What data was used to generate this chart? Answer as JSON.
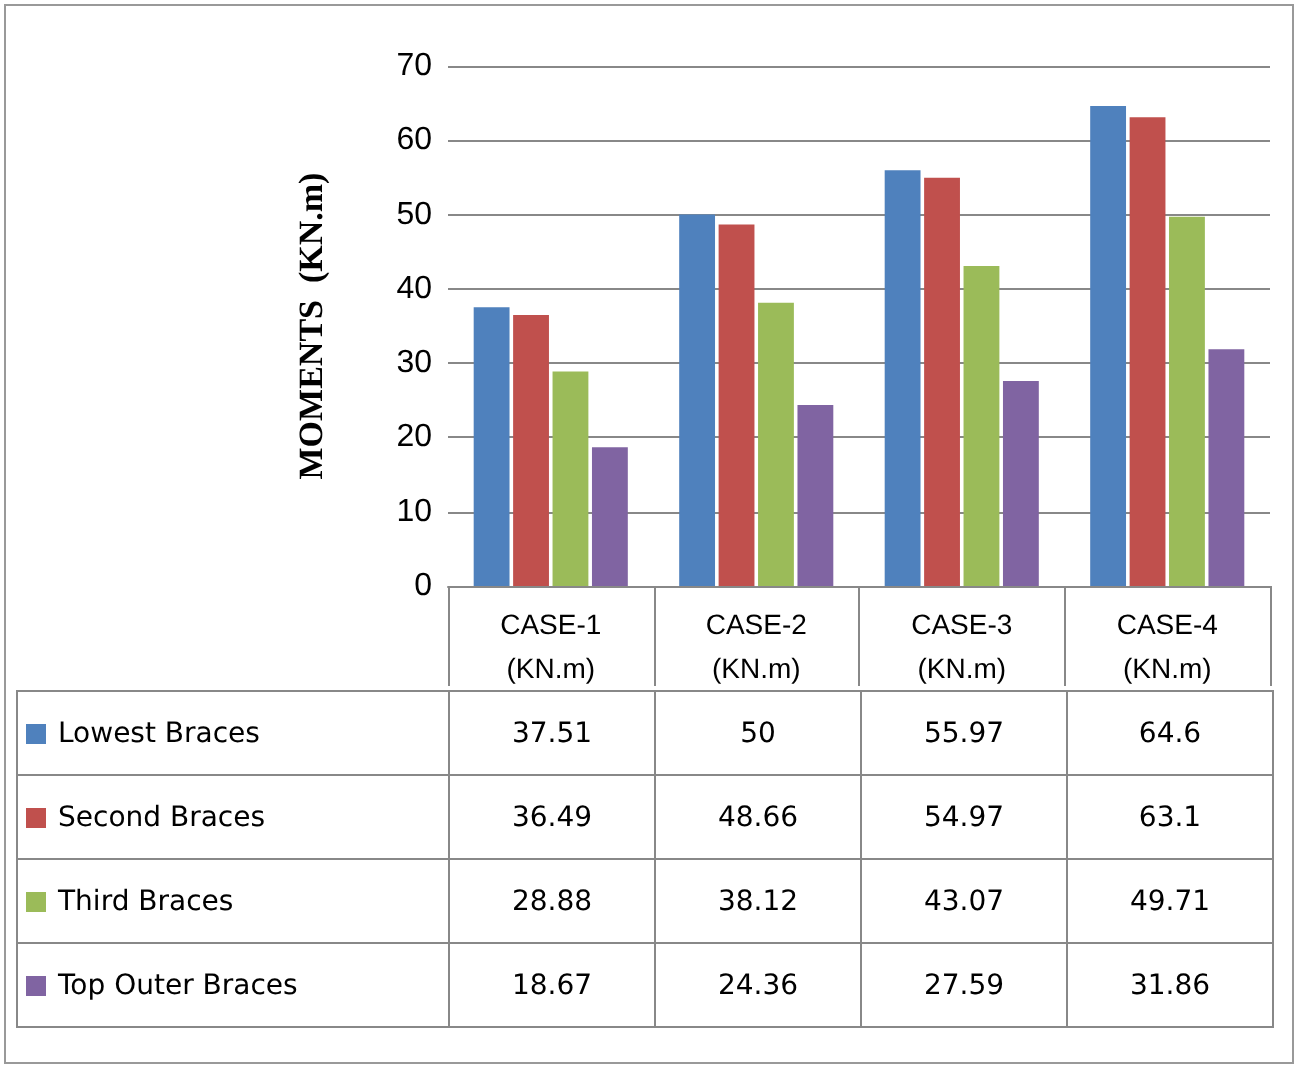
{
  "chart_data": {
    "type": "bar",
    "ylabel": "MOMENTS  (KN.m)",
    "categories": [
      "CASE-1 (KN.m)",
      "CASE-2 (KN.m)",
      "CASE-3 (KN.m)",
      "CASE-4 (KN.m)"
    ],
    "series": [
      {
        "name": "Lowest Braces",
        "color": "#4f81bd",
        "values": [
          37.51,
          50,
          55.97,
          64.6
        ]
      },
      {
        "name": "Second Braces",
        "color": "#c0504d",
        "values": [
          36.49,
          48.66,
          54.97,
          63.1
        ]
      },
      {
        "name": "Third Braces",
        "color": "#9bbb59",
        "values": [
          28.88,
          38.12,
          43.07,
          49.71
        ]
      },
      {
        "name": "Top Outer Braces",
        "color": "#8064a2",
        "values": [
          18.67,
          24.36,
          27.59,
          31.86
        ]
      }
    ],
    "ylim": [
      0,
      70
    ],
    "yticks": [
      0,
      10,
      20,
      30,
      40,
      50,
      60,
      70
    ],
    "grid": "y",
    "legend": "bottom",
    "data_labels": true
  }
}
